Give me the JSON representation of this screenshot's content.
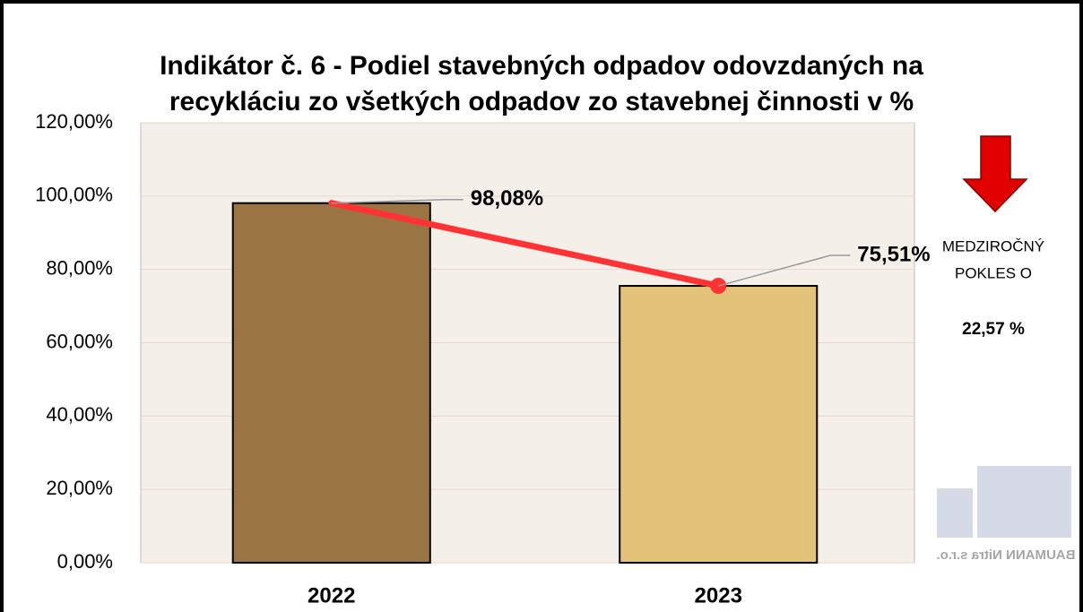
{
  "chart_data": {
    "type": "bar",
    "title": [
      "Indikátor č. 6 - Podiel stavebných odpadov odovzdaných na",
      "recykláciu zo všetkých odpadov zo stavebnej činnosti v %"
    ],
    "categories": [
      "2022",
      "2023"
    ],
    "values": [
      98.08,
      75.51
    ],
    "value_labels": [
      "98,08%",
      "75,51%"
    ],
    "colors": [
      "#9a7442",
      "#e3c27a"
    ],
    "line_color": "#ff3333",
    "ylim": [
      0,
      120
    ],
    "yticks": [
      {
        "value": 0,
        "label": "0,00%"
      },
      {
        "value": 20,
        "label": "20,00%"
      },
      {
        "value": 40,
        "label": "40,00%"
      },
      {
        "value": 60,
        "label": "60,00%"
      },
      {
        "value": 80,
        "label": "80,00%"
      },
      {
        "value": 100,
        "label": "100,00%"
      },
      {
        "value": 120,
        "label": "120,00%"
      }
    ],
    "grid": true,
    "annotation": {
      "lines": [
        "MEDZIROČNÝ",
        "POKLES O"
      ],
      "value_label": "22,57 %"
    },
    "logo_text": "BAUMANN Nitra s.r.o."
  }
}
